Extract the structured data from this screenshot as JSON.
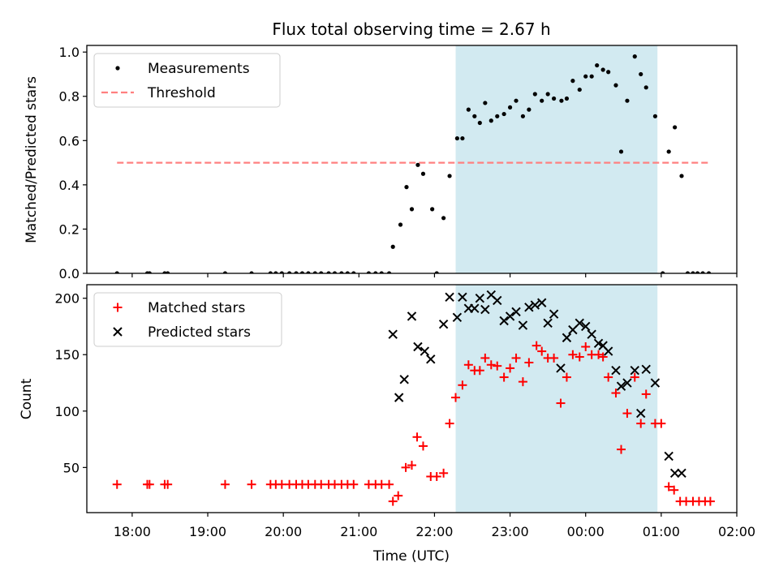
{
  "chart_data": {
    "title": "Flux total observing time = 2.67 h",
    "xlabel": "Time (UTC)",
    "x_unit": "hours of observing night, 24+ = next day",
    "xlim": [
      17.4,
      26.0
    ],
    "x_ticks": [
      {
        "value": 18,
        "label": "18:00"
      },
      {
        "value": 19,
        "label": "19:00"
      },
      {
        "value": 20,
        "label": "20:00"
      },
      {
        "value": 21,
        "label": "21:00"
      },
      {
        "value": 22,
        "label": "22:00"
      },
      {
        "value": 23,
        "label": "23:00"
      },
      {
        "value": 24,
        "label": "00:00"
      },
      {
        "value": 25,
        "label": "01:00"
      },
      {
        "value": 26,
        "label": "02:00"
      }
    ],
    "shaded_span": {
      "start": 22.28,
      "end": 24.95,
      "color": "#add8e6"
    },
    "panels": [
      {
        "type": "scatter",
        "ylabel": "Matched/Predicted stars",
        "ylim": [
          0,
          1.03
        ],
        "y_ticks": [
          {
            "value": 0.0,
            "label": "0.0"
          },
          {
            "value": 0.2,
            "label": "0.2"
          },
          {
            "value": 0.4,
            "label": "0.4"
          },
          {
            "value": 0.6,
            "label": "0.6"
          },
          {
            "value": 0.8,
            "label": "0.8"
          },
          {
            "value": 1.0,
            "label": "1.0"
          }
        ],
        "legend": {
          "placement": "upper-left",
          "entries": [
            "Measurements",
            "Threshold"
          ]
        },
        "threshold": {
          "name": "Threshold",
          "y": 0.5,
          "x_start": 17.8,
          "x_end": 25.63,
          "color": "#ff8080"
        },
        "series": [
          {
            "name": "Measurements",
            "marker": "dot",
            "color": "#000000",
            "points": [
              [
                17.8,
                0
              ],
              [
                18.2,
                0
              ],
              [
                18.23,
                0
              ],
              [
                18.43,
                0
              ],
              [
                18.47,
                0
              ],
              [
                19.23,
                0
              ],
              [
                19.58,
                0
              ],
              [
                19.83,
                0
              ],
              [
                19.9,
                0
              ],
              [
                19.98,
                0
              ],
              [
                20.08,
                0
              ],
              [
                20.17,
                0
              ],
              [
                20.25,
                0
              ],
              [
                20.33,
                0
              ],
              [
                20.42,
                0
              ],
              [
                20.5,
                0
              ],
              [
                20.6,
                0
              ],
              [
                20.68,
                0
              ],
              [
                20.77,
                0
              ],
              [
                20.85,
                0
              ],
              [
                20.93,
                0
              ],
              [
                21.13,
                0
              ],
              [
                21.22,
                0
              ],
              [
                21.3,
                0
              ],
              [
                21.4,
                0
              ],
              [
                21.45,
                0.12
              ],
              [
                21.55,
                0.22
              ],
              [
                21.63,
                0.39
              ],
              [
                21.7,
                0.29
              ],
              [
                21.78,
                0.49
              ],
              [
                21.85,
                0.45
              ],
              [
                21.97,
                0.29
              ],
              [
                22.03,
                0
              ],
              [
                22.12,
                0.25
              ],
              [
                22.2,
                0.44
              ],
              [
                22.3,
                0.61
              ],
              [
                22.37,
                0.61
              ],
              [
                22.45,
                0.74
              ],
              [
                22.53,
                0.71
              ],
              [
                22.6,
                0.68
              ],
              [
                22.67,
                0.77
              ],
              [
                22.75,
                0.69
              ],
              [
                22.83,
                0.71
              ],
              [
                22.92,
                0.72
              ],
              [
                23.0,
                0.75
              ],
              [
                23.08,
                0.78
              ],
              [
                23.17,
                0.71
              ],
              [
                23.25,
                0.74
              ],
              [
                23.33,
                0.81
              ],
              [
                23.42,
                0.78
              ],
              [
                23.5,
                0.81
              ],
              [
                23.58,
                0.79
              ],
              [
                23.68,
                0.78
              ],
              [
                23.75,
                0.79
              ],
              [
                23.83,
                0.87
              ],
              [
                23.92,
                0.83
              ],
              [
                24.0,
                0.89
              ],
              [
                24.08,
                0.89
              ],
              [
                24.15,
                0.94
              ],
              [
                24.23,
                0.92
              ],
              [
                24.3,
                0.91
              ],
              [
                24.4,
                0.85
              ],
              [
                24.47,
                0.55
              ],
              [
                24.55,
                0.78
              ],
              [
                24.65,
                0.98
              ],
              [
                24.73,
                0.9
              ],
              [
                24.8,
                0.84
              ],
              [
                24.92,
                0.71
              ],
              [
                25.02,
                0
              ],
              [
                25.1,
                0.55
              ],
              [
                25.18,
                0.66
              ],
              [
                25.27,
                0.44
              ],
              [
                25.35,
                0
              ],
              [
                25.42,
                0
              ],
              [
                25.48,
                0
              ],
              [
                25.55,
                0
              ],
              [
                25.63,
                0
              ]
            ]
          }
        ]
      },
      {
        "type": "scatter",
        "ylabel": "Count",
        "ylim": [
          10,
          212
        ],
        "y_ticks": [
          {
            "value": 50,
            "label": "50"
          },
          {
            "value": 100,
            "label": "100"
          },
          {
            "value": 150,
            "label": "150"
          },
          {
            "value": 200,
            "label": "200"
          }
        ],
        "legend": {
          "placement": "upper-left",
          "entries": [
            "Matched stars",
            "Predicted stars"
          ]
        },
        "series": [
          {
            "name": "Matched stars",
            "marker": "plus",
            "color": "#ff0000",
            "points": [
              [
                17.8,
                35
              ],
              [
                18.2,
                35
              ],
              [
                18.23,
                35
              ],
              [
                18.43,
                35
              ],
              [
                18.47,
                35
              ],
              [
                19.23,
                35
              ],
              [
                19.58,
                35
              ],
              [
                19.83,
                35
              ],
              [
                19.9,
                35
              ],
              [
                19.98,
                35
              ],
              [
                20.08,
                35
              ],
              [
                20.17,
                35
              ],
              [
                20.25,
                35
              ],
              [
                20.33,
                35
              ],
              [
                20.42,
                35
              ],
              [
                20.5,
                35
              ],
              [
                20.6,
                35
              ],
              [
                20.68,
                35
              ],
              [
                20.77,
                35
              ],
              [
                20.85,
                35
              ],
              [
                20.93,
                35
              ],
              [
                21.13,
                35
              ],
              [
                21.22,
                35
              ],
              [
                21.3,
                35
              ],
              [
                21.4,
                35
              ],
              [
                21.45,
                20
              ],
              [
                21.52,
                25
              ],
              [
                21.62,
                50
              ],
              [
                21.7,
                52
              ],
              [
                21.77,
                77
              ],
              [
                21.85,
                69
              ],
              [
                21.95,
                42
              ],
              [
                22.03,
                42
              ],
              [
                22.12,
                45
              ],
              [
                22.2,
                89
              ],
              [
                22.28,
                112
              ],
              [
                22.37,
                123
              ],
              [
                22.45,
                141
              ],
              [
                22.53,
                136
              ],
              [
                22.6,
                136
              ],
              [
                22.67,
                147
              ],
              [
                22.75,
                141
              ],
              [
                22.83,
                140
              ],
              [
                22.92,
                130
              ],
              [
                23.0,
                138
              ],
              [
                23.08,
                147
              ],
              [
                23.17,
                126
              ],
              [
                23.25,
                143
              ],
              [
                23.35,
                158
              ],
              [
                23.42,
                153
              ],
              [
                23.5,
                147
              ],
              [
                23.58,
                147
              ],
              [
                23.67,
                107
              ],
              [
                23.75,
                130
              ],
              [
                23.83,
                150
              ],
              [
                23.92,
                148
              ],
              [
                24.0,
                157
              ],
              [
                24.08,
                150
              ],
              [
                24.17,
                150
              ],
              [
                24.23,
                148
              ],
              [
                24.3,
                130
              ],
              [
                24.4,
                116
              ],
              [
                24.47,
                66
              ],
              [
                24.55,
                98
              ],
              [
                24.65,
                130
              ],
              [
                24.73,
                89
              ],
              [
                24.8,
                115
              ],
              [
                24.92,
                89
              ],
              [
                25.0,
                89
              ],
              [
                25.1,
                33
              ],
              [
                25.17,
                30
              ],
              [
                25.25,
                20
              ],
              [
                25.33,
                20
              ],
              [
                25.42,
                20
              ],
              [
                25.5,
                20
              ],
              [
                25.58,
                20
              ],
              [
                25.65,
                20
              ]
            ]
          },
          {
            "name": "Predicted stars",
            "marker": "x",
            "color": "#000000",
            "points": [
              [
                21.45,
                168
              ],
              [
                21.53,
                112
              ],
              [
                21.6,
                128
              ],
              [
                21.7,
                184
              ],
              [
                21.78,
                157
              ],
              [
                21.87,
                153
              ],
              [
                21.95,
                146
              ],
              [
                22.12,
                177
              ],
              [
                22.2,
                201
              ],
              [
                22.3,
                183
              ],
              [
                22.37,
                201
              ],
              [
                22.45,
                191
              ],
              [
                22.53,
                191
              ],
              [
                22.6,
                200
              ],
              [
                22.67,
                190
              ],
              [
                22.75,
                203
              ],
              [
                22.83,
                198
              ],
              [
                22.92,
                180
              ],
              [
                23.0,
                184
              ],
              [
                23.08,
                188
              ],
              [
                23.17,
                176
              ],
              [
                23.25,
                192
              ],
              [
                23.33,
                194
              ],
              [
                23.42,
                196
              ],
              [
                23.5,
                178
              ],
              [
                23.58,
                186
              ],
              [
                23.67,
                138
              ],
              [
                23.75,
                165
              ],
              [
                23.83,
                172
              ],
              [
                23.92,
                178
              ],
              [
                24.0,
                175
              ],
              [
                24.08,
                168
              ],
              [
                24.17,
                160
              ],
              [
                24.23,
                158
              ],
              [
                24.3,
                153
              ],
              [
                24.4,
                136
              ],
              [
                24.47,
                122
              ],
              [
                24.55,
                125
              ],
              [
                24.65,
                136
              ],
              [
                24.73,
                98
              ],
              [
                24.8,
                137
              ],
              [
                24.92,
                125
              ],
              [
                25.1,
                60
              ],
              [
                25.18,
                45
              ],
              [
                25.27,
                45
              ]
            ]
          }
        ]
      }
    ]
  }
}
